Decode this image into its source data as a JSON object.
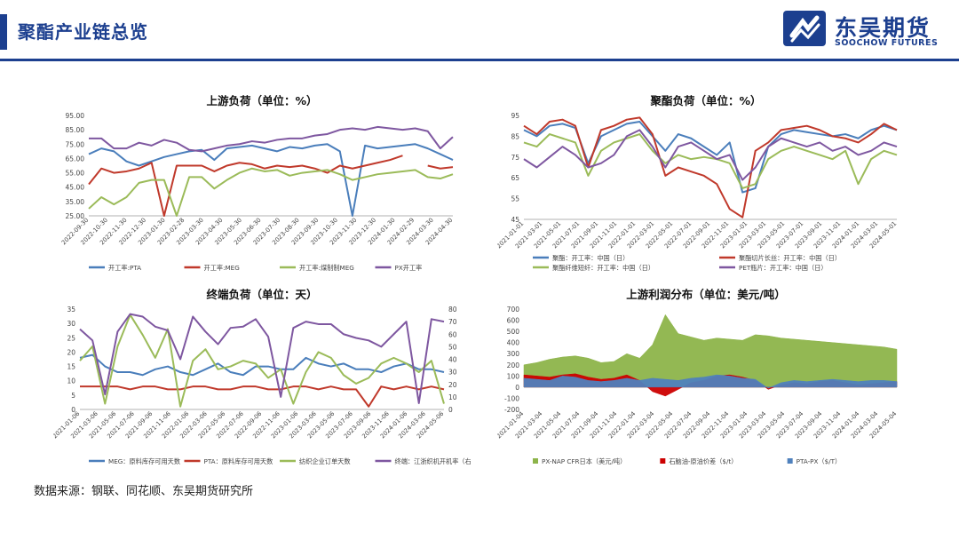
{
  "header": {
    "title": "聚酯产业链总览",
    "logo_name": "东吴期货",
    "logo_sub": "SOOCHOW FUTURES",
    "accent": "#1c3f8f"
  },
  "source": "数据来源：钢联、同花顺、东吴期货研究所",
  "chart_data": [
    {
      "id": "upstream-load",
      "type": "line",
      "title": "上游负荷（单位：%）",
      "ylim": [
        25,
        95
      ],
      "yticks": [
        "25.00",
        "35.00",
        "45.00",
        "55.00",
        "65.00",
        "75.00",
        "85.00",
        "95.00"
      ],
      "xticks": [
        "2022-09-30",
        "2022-10-30",
        "2022-11-30",
        "2022-12-30",
        "2023-01-30",
        "2023-02-28",
        "2023-03-30",
        "2023-04-30",
        "2023-05-30",
        "2023-06-30",
        "2023-07-30",
        "2023-08-30",
        "2023-09-30",
        "2023-10-30",
        "2023-11-30",
        "2023-12-30",
        "2024-01-30",
        "2024-02-29",
        "2024-03-30",
        "2024-04-30"
      ],
      "series": [
        {
          "name": "开工率:PTA",
          "color": "#4a7ebb",
          "values": [
            68,
            72,
            70,
            63,
            60,
            63,
            66,
            68,
            70,
            71,
            64,
            72,
            73,
            74,
            72,
            70,
            73,
            72,
            74,
            75,
            70,
            25,
            74,
            72,
            73,
            74,
            75,
            72,
            68,
            64
          ]
        },
        {
          "name": "开工率:MEG",
          "color": "#c0392b",
          "values": [
            47,
            58,
            55,
            56,
            58,
            62,
            25,
            60,
            60,
            60,
            56,
            60,
            62,
            61,
            58,
            60,
            59,
            60,
            58,
            55,
            60,
            58,
            60,
            62,
            64,
            67,
            null,
            60,
            58,
            59
          ]
        },
        {
          "name": "开工率:煤制制MEG",
          "color": "#9bbb59",
          "values": [
            30,
            38,
            33,
            38,
            48,
            50,
            50,
            25,
            52,
            52,
            44,
            50,
            55,
            58,
            56,
            57,
            53,
            55,
            56,
            57,
            54,
            50,
            52,
            54,
            55,
            56,
            57,
            52,
            51,
            54
          ]
        },
        {
          "name": "PX开工率",
          "color": "#7e57a0",
          "values": [
            79,
            79,
            72,
            72,
            76,
            74,
            78,
            76,
            71,
            70,
            72,
            74,
            75,
            77,
            76,
            78,
            79,
            79,
            81,
            82,
            85,
            86,
            85,
            87,
            86,
            85,
            86,
            84,
            72,
            80
          ]
        }
      ]
    },
    {
      "id": "polyester-load",
      "type": "line",
      "title": "聚酯负荷（单位：%）",
      "ylim": [
        45,
        95
      ],
      "yticks": [
        "45",
        "55",
        "65",
        "75",
        "85",
        "95"
      ],
      "xticks": [
        "2021-01-01",
        "2021-03-01",
        "2021-05-01",
        "2021-07-01",
        "2021-09-01",
        "2021-11-01",
        "2022-01-01",
        "2022-03-01",
        "2022-05-01",
        "2022-07-01",
        "2022-09-01",
        "2022-11-01",
        "2023-01-01",
        "2023-03-01",
        "2023-05-01",
        "2023-07-01",
        "2023-09-01",
        "2023-11-01",
        "2024-01-01",
        "2024-03-01",
        "2024-05-01"
      ],
      "series": [
        {
          "name": "聚酯：开工率：中国（日）",
          "color": "#4a7ebb",
          "values": [
            88,
            85,
            90,
            91,
            89,
            72,
            85,
            88,
            91,
            92,
            85,
            78,
            86,
            84,
            80,
            76,
            82,
            58,
            60,
            80,
            86,
            88,
            87,
            86,
            85,
            86,
            84,
            88,
            90,
            88
          ]
        },
        {
          "name": "聚酯切片长丝：开工率：中国（日）",
          "color": "#c0392b",
          "values": [
            90,
            86,
            92,
            93,
            90,
            70,
            88,
            90,
            93,
            94,
            86,
            66,
            70,
            68,
            66,
            62,
            50,
            46,
            78,
            82,
            88,
            89,
            90,
            88,
            85,
            84,
            82,
            86,
            91,
            88
          ]
        },
        {
          "name": "聚酯纤维短纤：开工率：中国（日）",
          "color": "#9bbb59",
          "values": [
            82,
            80,
            86,
            84,
            82,
            66,
            78,
            82,
            84,
            86,
            78,
            72,
            76,
            74,
            75,
            74,
            72,
            60,
            62,
            74,
            78,
            80,
            78,
            76,
            74,
            78,
            62,
            74,
            78,
            76
          ]
        },
        {
          "name": "PET瓶片：开工率：中国（日）",
          "color": "#7e57a0",
          "values": [
            74,
            70,
            75,
            80,
            76,
            70,
            72,
            76,
            85,
            88,
            80,
            70,
            80,
            82,
            78,
            74,
            76,
            64,
            70,
            80,
            84,
            82,
            80,
            82,
            78,
            80,
            76,
            78,
            82,
            80
          ]
        }
      ]
    },
    {
      "id": "terminal-load",
      "type": "line",
      "title": "终端负荷（单位：天）",
      "ylim": [
        0,
        35
      ],
      "y2lim": [
        0,
        80
      ],
      "yticks": [
        "0",
        "5",
        "10",
        "15",
        "20",
        "25",
        "30",
        "35"
      ],
      "y2ticks": [
        "0",
        "10",
        "20",
        "30",
        "40",
        "50",
        "60",
        "70",
        "80"
      ],
      "xticks": [
        "2021-01-06",
        "2021-03-06",
        "2021-05-06",
        "2021-07-06",
        "2021-09-06",
        "2021-11-06",
        "2022-01-06",
        "2022-03-06",
        "2022-05-06",
        "2022-07-06",
        "2022-09-06",
        "2022-11-06",
        "2023-01-06",
        "2023-03-06",
        "2023-05-06",
        "2023-07-06",
        "2023-09-06",
        "2023-11-06",
        "2024-01-06",
        "2024-03-06",
        "2024-05-06"
      ],
      "series": [
        {
          "name": "MEG：原料库存可用天数",
          "color": "#4a7ebb",
          "axis": "left",
          "values": [
            18,
            19,
            15,
            13,
            13,
            12,
            14,
            15,
            13,
            12,
            14,
            16,
            13,
            12,
            15,
            15,
            14,
            14,
            18,
            16,
            15,
            16,
            14,
            14,
            13,
            15,
            16,
            14,
            14,
            13
          ]
        },
        {
          "name": "PTA：原料库存可用天数",
          "color": "#c0392b",
          "axis": "left",
          "values": [
            8,
            8,
            8,
            8,
            7,
            8,
            8,
            7,
            7,
            8,
            8,
            7,
            7,
            8,
            8,
            7,
            7,
            8,
            8,
            7,
            8,
            7,
            7,
            1,
            8,
            7,
            8,
            7,
            8,
            7
          ]
        },
        {
          "name": "纺织企业订单天数",
          "color": "#9bbb59",
          "axis": "left",
          "values": [
            17,
            22,
            2,
            22,
            33,
            26,
            18,
            28,
            1,
            17,
            21,
            14,
            15,
            17,
            16,
            11,
            14,
            2,
            13,
            20,
            18,
            12,
            9,
            11,
            16,
            18,
            16,
            13,
            17,
            2
          ]
        },
        {
          "name": "终端：江浙织机开机率（右）",
          "color": "#7e57a0",
          "axis": "right",
          "values": [
            64,
            55,
            12,
            62,
            76,
            74,
            66,
            63,
            40,
            74,
            62,
            52,
            65,
            66,
            72,
            58,
            10,
            65,
            70,
            68,
            68,
            60,
            57,
            55,
            50,
            60,
            70,
            5,
            72,
            70
          ]
        }
      ]
    },
    {
      "id": "upstream-profit",
      "type": "area",
      "title": "上游利润分布（单位：美元/吨）",
      "ylim": [
        -200,
        700
      ],
      "yticks": [
        "-200",
        "-100",
        "0",
        "100",
        "200",
        "300",
        "400",
        "500",
        "600",
        "700"
      ],
      "xticks": [
        "2021-01-04",
        "2021-03-04",
        "2021-05-04",
        "2021-07-04",
        "2021-09-04",
        "2021-11-04",
        "2022-01-04",
        "2022-03-04",
        "2022-05-04",
        "2022-07-04",
        "2022-09-04",
        "2022-11-04",
        "2023-01-04",
        "2023-03-04",
        "2023-05-04",
        "2023-07-04",
        "2023-09-04",
        "2023-11-04",
        "2024-01-04",
        "2024-03-04",
        "2024-05-04"
      ],
      "series": [
        {
          "name": "PX-NAP CFR日本（美元/吨）",
          "color": "#8db44a",
          "values": [
            200,
            220,
            250,
            270,
            280,
            260,
            220,
            230,
            300,
            260,
            380,
            650,
            480,
            450,
            420,
            440,
            430,
            420,
            470,
            460,
            440,
            430,
            420,
            410,
            400,
            390,
            380,
            370,
            360,
            340
          ]
        },
        {
          "name": "石脑油-原油价差（$/t）",
          "color": "#cc0000",
          "values": [
            110,
            100,
            90,
            110,
            120,
            90,
            70,
            80,
            110,
            60,
            -40,
            -80,
            -20,
            40,
            60,
            100,
            110,
            90,
            60,
            -20,
            20,
            40,
            30,
            50,
            60,
            40,
            20,
            30,
            40,
            50
          ]
        },
        {
          "name": "PTA-PX（$/T）",
          "color": "#4f81bd",
          "values": [
            80,
            70,
            60,
            100,
            90,
            60,
            50,
            60,
            80,
            60,
            80,
            70,
            60,
            80,
            90,
            110,
            100,
            80,
            70,
            -10,
            40,
            60,
            50,
            60,
            70,
            60,
            50,
            60,
            60,
            50
          ]
        }
      ]
    }
  ]
}
